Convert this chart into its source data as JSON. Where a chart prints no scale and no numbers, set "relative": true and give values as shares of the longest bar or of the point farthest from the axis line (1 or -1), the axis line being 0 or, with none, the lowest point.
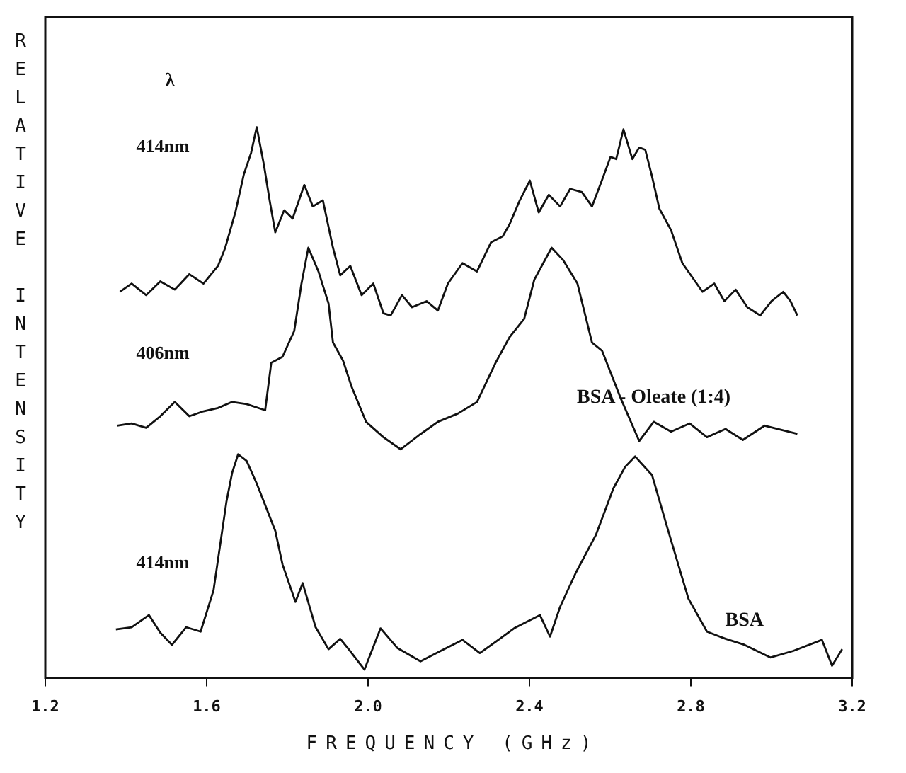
{
  "chart_data": {
    "type": "line",
    "xlabel": "FREQUENCY (GHz)",
    "ylabel": "RELATIVE INTENSITY",
    "relative": true,
    "xlim": [
      1.2,
      3.2
    ],
    "xticks": [
      {
        "value": 1.2,
        "label": "1.2"
      },
      {
        "value": 1.6,
        "label": "1.6"
      },
      {
        "value": 2,
        "label": "2.0"
      },
      {
        "value": 2.4,
        "label": "2.4"
      },
      {
        "value": 2.8,
        "label": "2.8"
      },
      {
        "value": 3.2,
        "label": "3.2"
      }
    ],
    "grid": false,
    "legend": false,
    "marker": "none",
    "line_style": "solid",
    "annotations": [
      "λ",
      "414nm",
      "406nm",
      "414nm"
    ],
    "series": [
      {
        "color": "#111111",
        "x": [
          1.385,
          1.414,
          1.45,
          1.485,
          1.521,
          1.557,
          1.592,
          1.628,
          1.646,
          1.671,
          1.692,
          1.71,
          1.724,
          1.742,
          1.756,
          1.77,
          1.792,
          1.813,
          1.842,
          1.863,
          1.888,
          1.913,
          1.931,
          1.956,
          1.984,
          2.013,
          2.038,
          2.056,
          2.084,
          2.109,
          2.145,
          2.173,
          2.198,
          2.234,
          2.27,
          2.305,
          2.334,
          2.351,
          2.376,
          2.401,
          2.423,
          2.448,
          2.476,
          2.501,
          2.53,
          2.555,
          2.583,
          2.601,
          2.615,
          2.633,
          2.655,
          2.672,
          2.687,
          2.704,
          2.722,
          2.751,
          2.779,
          2.804,
          2.829,
          2.858,
          2.883,
          2.911,
          2.94,
          2.972,
          3.0,
          3.029,
          3.047,
          3.064
        ],
        "values": [
          0.701,
          0.716,
          0.695,
          0.72,
          0.705,
          0.733,
          0.716,
          0.748,
          0.781,
          0.845,
          0.914,
          0.953,
          1.0,
          0.931,
          0.867,
          0.809,
          0.849,
          0.834,
          0.895,
          0.856,
          0.867,
          0.781,
          0.731,
          0.748,
          0.695,
          0.716,
          0.662,
          0.658,
          0.695,
          0.673,
          0.684,
          0.667,
          0.716,
          0.753,
          0.738,
          0.791,
          0.802,
          0.824,
          0.867,
          0.903,
          0.845,
          0.877,
          0.856,
          0.888,
          0.882,
          0.856,
          0.91,
          0.946,
          0.942,
          0.996,
          0.942,
          0.963,
          0.959,
          0.91,
          0.852,
          0.813,
          0.753,
          0.727,
          0.701,
          0.716,
          0.684,
          0.705,
          0.673,
          0.658,
          0.684,
          0.701,
          0.684,
          0.658
        ]
      },
      {
        "name": "BSA - Oleate (1:4)",
        "color": "#111111",
        "x": [
          1.378,
          1.414,
          1.45,
          1.485,
          1.521,
          1.557,
          1.592,
          1.628,
          1.663,
          1.699,
          1.745,
          1.76,
          1.788,
          1.817,
          1.835,
          1.852,
          1.877,
          1.902,
          1.913,
          1.938,
          1.959,
          1.995,
          2.038,
          2.081,
          2.127,
          2.173,
          2.223,
          2.27,
          2.316,
          2.351,
          2.387,
          2.412,
          2.455,
          2.483,
          2.519,
          2.555,
          2.58,
          2.626,
          2.672,
          2.708,
          2.751,
          2.797,
          2.84,
          2.886,
          2.929,
          2.983,
          3.064
        ],
        "values": [
          0.458,
          0.462,
          0.454,
          0.475,
          0.501,
          0.475,
          0.484,
          0.49,
          0.501,
          0.497,
          0.486,
          0.572,
          0.583,
          0.63,
          0.716,
          0.781,
          0.738,
          0.68,
          0.609,
          0.576,
          0.529,
          0.465,
          0.437,
          0.415,
          0.441,
          0.465,
          0.48,
          0.501,
          0.572,
          0.619,
          0.652,
          0.723,
          0.781,
          0.759,
          0.716,
          0.609,
          0.594,
          0.508,
          0.43,
          0.465,
          0.447,
          0.462,
          0.437,
          0.452,
          0.432,
          0.458,
          0.443
        ]
      },
      {
        "name": "BSA",
        "color": "#111111",
        "x": [
          1.375,
          1.414,
          1.457,
          1.485,
          1.514,
          1.549,
          1.585,
          1.617,
          1.649,
          1.663,
          1.678,
          1.699,
          1.724,
          1.77,
          1.788,
          1.82,
          1.838,
          1.87,
          1.902,
          1.931,
          1.952,
          1.991,
          2.031,
          2.073,
          2.13,
          2.18,
          2.234,
          2.277,
          2.323,
          2.362,
          2.426,
          2.451,
          2.476,
          2.515,
          2.565,
          2.608,
          2.637,
          2.662,
          2.704,
          2.744,
          2.794,
          2.84,
          2.886,
          2.933,
          2.997,
          3.054,
          3.125,
          3.15,
          3.175
        ],
        "values": [
          0.088,
          0.092,
          0.114,
          0.082,
          0.06,
          0.092,
          0.084,
          0.159,
          0.32,
          0.372,
          0.406,
          0.394,
          0.353,
          0.267,
          0.206,
          0.138,
          0.172,
          0.092,
          0.052,
          0.071,
          0.052,
          0.015,
          0.09,
          0.054,
          0.03,
          0.049,
          0.069,
          0.045,
          0.069,
          0.09,
          0.114,
          0.075,
          0.129,
          0.191,
          0.26,
          0.344,
          0.383,
          0.402,
          0.368,
          0.267,
          0.144,
          0.084,
          0.071,
          0.06,
          0.037,
          0.049,
          0.069,
          0.022,
          0.052
        ]
      }
    ]
  }
}
